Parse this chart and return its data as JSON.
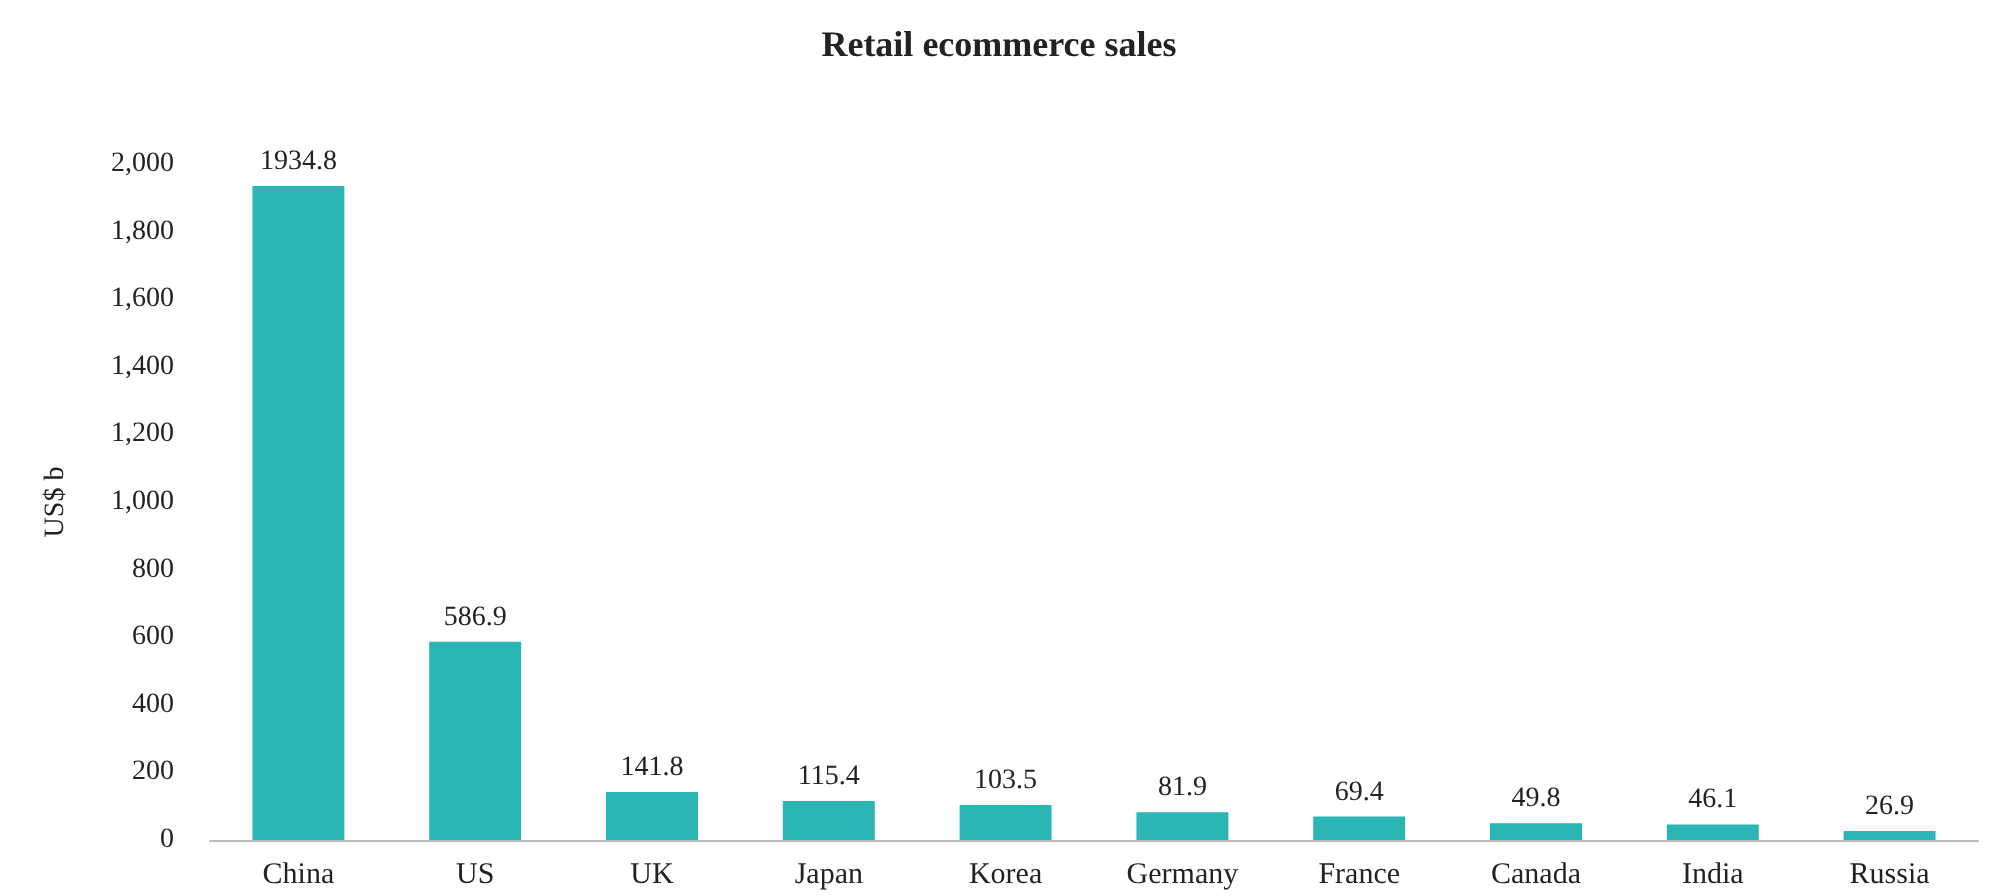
{
  "chart_data": {
    "type": "bar",
    "title": "Retail ecommerce sales",
    "ylabel": "US$ b",
    "categories": [
      "China",
      "US",
      "UK",
      "Japan",
      "Korea",
      "Germany",
      "France",
      "Canada",
      "India",
      "Russia"
    ],
    "values": [
      1934.8,
      586.9,
      141.8,
      115.4,
      103.5,
      81.9,
      69.4,
      49.8,
      46.1,
      26.9
    ],
    "color": "#2bb5b5",
    "ylim": [
      0,
      2000
    ],
    "yticks": [
      0,
      200,
      400,
      600,
      800,
      {
        "value": 1000,
        "label": "1,000"
      },
      {
        "value": 1200,
        "label": "1,200"
      },
      {
        "value": 1400,
        "label": "1,400"
      },
      {
        "value": 1600,
        "label": "1,600"
      },
      {
        "value": 1800,
        "label": "1,800"
      },
      {
        "value": 2000,
        "label": "2,000"
      }
    ],
    "grid": false,
    "data_labels": true
  }
}
